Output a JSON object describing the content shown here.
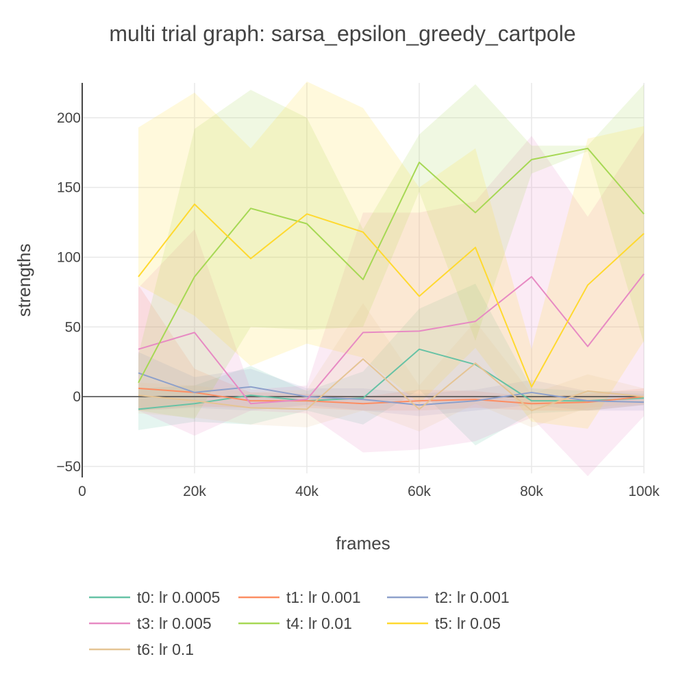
{
  "chart_data": {
    "type": "line",
    "title": "multi trial graph: sarsa_epsilon_greedy_cartpole",
    "xlabel": "frames",
    "ylabel": "strengths",
    "xlim": [
      0,
      100000
    ],
    "ylim": [
      -55,
      225
    ],
    "x_ticks": [
      0,
      20000,
      40000,
      60000,
      80000,
      100000
    ],
    "x_tick_labels": [
      "0",
      "20k",
      "40k",
      "60k",
      "80k",
      "100k"
    ],
    "y_ticks": [
      -50,
      0,
      50,
      100,
      150,
      200
    ],
    "y_tick_labels": [
      "−50",
      "0",
      "50",
      "100",
      "150",
      "200"
    ],
    "grid": true,
    "legend_position": "bottom",
    "error_bands": true,
    "x": [
      10000,
      20000,
      30000,
      40000,
      50000,
      60000,
      70000,
      80000,
      90000,
      100000
    ],
    "series": [
      {
        "name": "t0: lr 0.0005",
        "color": "#66c2a5",
        "values": [
          -9,
          -5,
          1,
          -3,
          -1,
          34,
          23,
          -3,
          -3,
          -1
        ],
        "lower": [
          -24,
          -18,
          -20,
          -10,
          -20,
          5,
          -35,
          -12,
          -10,
          -6
        ],
        "upper": [
          6,
          8,
          22,
          4,
          18,
          63,
          81,
          6,
          4,
          4
        ]
      },
      {
        "name": "t1: lr 0.001",
        "color": "#fc8d62",
        "values": [
          6,
          3,
          -3,
          -3,
          -5,
          -3,
          -2,
          -5,
          -4,
          0
        ],
        "lower": [
          -10,
          -7,
          -8,
          -8,
          -10,
          -10,
          -8,
          -10,
          -10,
          -6
        ],
        "upper": [
          80,
          20,
          3,
          2,
          0,
          5,
          4,
          0,
          2,
          6
        ]
      },
      {
        "name": "t2: lr 0.001",
        "color": "#8da0cb",
        "values": [
          17,
          3,
          7,
          0,
          -2,
          -6,
          -3,
          3,
          -3,
          -4
        ],
        "lower": [
          -10,
          -8,
          -10,
          -6,
          -10,
          -14,
          -10,
          -6,
          -10,
          -10
        ],
        "upper": [
          32,
          14,
          20,
          6,
          6,
          2,
          5,
          12,
          4,
          2
        ]
      },
      {
        "name": "t3: lr 0.005",
        "color": "#e78ac3",
        "values": [
          34,
          46,
          -5,
          -2,
          46,
          47,
          54,
          86,
          36,
          88
        ],
        "lower": [
          -10,
          -28,
          -10,
          -12,
          -40,
          -38,
          -32,
          -15,
          -57,
          -14
        ],
        "upper": [
          78,
          120,
          5,
          8,
          132,
          132,
          140,
          187,
          129,
          190
        ]
      },
      {
        "name": "t4: lr 0.01",
        "color": "#a6d854",
        "values": [
          10,
          86,
          135,
          124,
          84,
          168,
          132,
          170,
          178,
          131
        ],
        "lower": [
          -10,
          -16,
          50,
          48,
          50,
          147,
          40,
          160,
          176,
          38
        ],
        "upper": [
          30,
          192,
          220,
          200,
          120,
          188,
          224,
          180,
          180,
          224
        ]
      },
      {
        "name": "t5: lr 0.05",
        "color": "#ffd92f",
        "values": [
          86,
          138,
          99,
          131,
          118,
          72,
          107,
          7,
          80,
          117
        ],
        "lower": [
          80,
          58,
          22,
          38,
          28,
          -5,
          35,
          -18,
          -23,
          40
        ],
        "upper": [
          193,
          218,
          178,
          226,
          207,
          150,
          178,
          34,
          185,
          194
        ]
      },
      {
        "name": "t6: lr 0.1",
        "color": "#e5c494",
        "values": [
          1,
          -3,
          -8,
          -9,
          27,
          -9,
          24,
          -10,
          4,
          0
        ],
        "lower": [
          -12,
          -15,
          -20,
          -22,
          -10,
          -25,
          -5,
          -22,
          -8,
          -5
        ],
        "upper": [
          10,
          8,
          3,
          5,
          67,
          8,
          54,
          2,
          16,
          6
        ]
      }
    ]
  }
}
